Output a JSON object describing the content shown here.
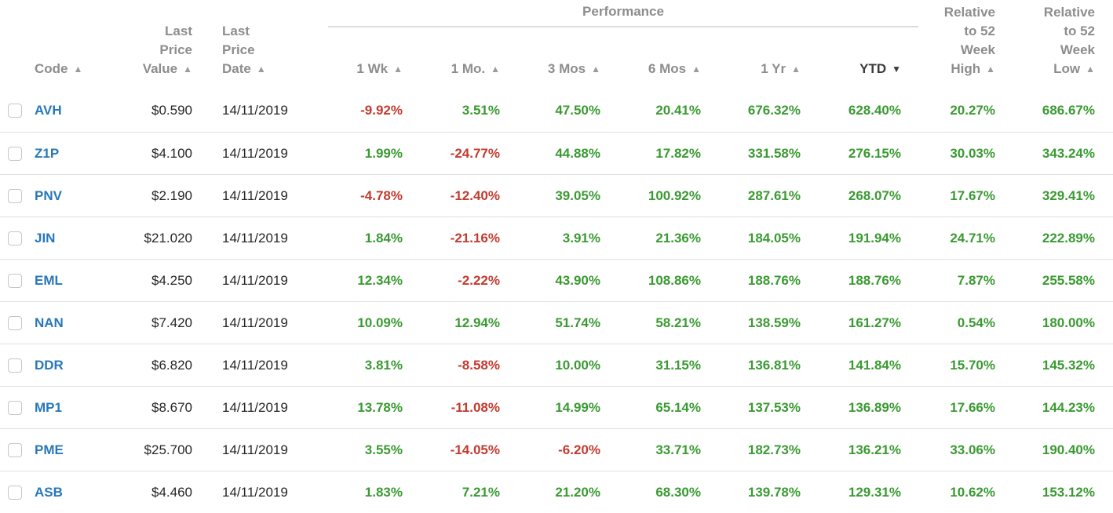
{
  "table": {
    "group_header": {
      "performance": "Performance"
    },
    "columns": {
      "code": "Code",
      "last_price_value": "Last\nPrice\nValue",
      "last_price_date": "Last\nPrice\nDate",
      "wk1": "1 Wk",
      "mo1": "1 Mo.",
      "mos3": "3 Mos",
      "mos6": "6 Mos",
      "yr1": "1 Yr",
      "ytd": "YTD",
      "rel_52wk_high": "Relative\nto 52\nWeek\nHigh",
      "rel_52wk_low": "Relative\nto 52\nWeek\nLow"
    },
    "sort": {
      "active_column": "ytd",
      "direction": "desc"
    },
    "icons": {
      "sort_asc": "▲",
      "sort_desc": "▼"
    },
    "rows": [
      {
        "selected": false,
        "code": "AVH",
        "last_price_value": "$0.590",
        "last_price_date": "14/11/2019",
        "perf": {
          "wk1": "-9.92%",
          "mo1": "3.51%",
          "mos3": "47.50%",
          "mos6": "20.41%",
          "yr1": "676.32%",
          "ytd": "628.40%"
        },
        "rel_52wk_high": "20.27%",
        "rel_52wk_low": "686.67%"
      },
      {
        "selected": false,
        "code": "Z1P",
        "last_price_value": "$4.100",
        "last_price_date": "14/11/2019",
        "perf": {
          "wk1": "1.99%",
          "mo1": "-24.77%",
          "mos3": "44.88%",
          "mos6": "17.82%",
          "yr1": "331.58%",
          "ytd": "276.15%"
        },
        "rel_52wk_high": "30.03%",
        "rel_52wk_low": "343.24%"
      },
      {
        "selected": false,
        "code": "PNV",
        "last_price_value": "$2.190",
        "last_price_date": "14/11/2019",
        "perf": {
          "wk1": "-4.78%",
          "mo1": "-12.40%",
          "mos3": "39.05%",
          "mos6": "100.92%",
          "yr1": "287.61%",
          "ytd": "268.07%"
        },
        "rel_52wk_high": "17.67%",
        "rel_52wk_low": "329.41%"
      },
      {
        "selected": false,
        "code": "JIN",
        "last_price_value": "$21.020",
        "last_price_date": "14/11/2019",
        "perf": {
          "wk1": "1.84%",
          "mo1": "-21.16%",
          "mos3": "3.91%",
          "mos6": "21.36%",
          "yr1": "184.05%",
          "ytd": "191.94%"
        },
        "rel_52wk_high": "24.71%",
        "rel_52wk_low": "222.89%"
      },
      {
        "selected": false,
        "code": "EML",
        "last_price_value": "$4.250",
        "last_price_date": "14/11/2019",
        "perf": {
          "wk1": "12.34%",
          "mo1": "-2.22%",
          "mos3": "43.90%",
          "mos6": "108.86%",
          "yr1": "188.76%",
          "ytd": "188.76%"
        },
        "rel_52wk_high": "7.87%",
        "rel_52wk_low": "255.58%"
      },
      {
        "selected": false,
        "code": "NAN",
        "last_price_value": "$7.420",
        "last_price_date": "14/11/2019",
        "perf": {
          "wk1": "10.09%",
          "mo1": "12.94%",
          "mos3": "51.74%",
          "mos6": "58.21%",
          "yr1": "138.59%",
          "ytd": "161.27%"
        },
        "rel_52wk_high": "0.54%",
        "rel_52wk_low": "180.00%"
      },
      {
        "selected": false,
        "code": "DDR",
        "last_price_value": "$6.820",
        "last_price_date": "14/11/2019",
        "perf": {
          "wk1": "3.81%",
          "mo1": "-8.58%",
          "mos3": "10.00%",
          "mos6": "31.15%",
          "yr1": "136.81%",
          "ytd": "141.84%"
        },
        "rel_52wk_high": "15.70%",
        "rel_52wk_low": "145.32%"
      },
      {
        "selected": false,
        "code": "MP1",
        "last_price_value": "$8.670",
        "last_price_date": "14/11/2019",
        "perf": {
          "wk1": "13.78%",
          "mo1": "-11.08%",
          "mos3": "14.99%",
          "mos6": "65.14%",
          "yr1": "137.53%",
          "ytd": "136.89%"
        },
        "rel_52wk_high": "17.66%",
        "rel_52wk_low": "144.23%"
      },
      {
        "selected": false,
        "code": "PME",
        "last_price_value": "$25.700",
        "last_price_date": "14/11/2019",
        "perf": {
          "wk1": "3.55%",
          "mo1": "-14.05%",
          "mos3": "-6.20%",
          "mos6": "33.71%",
          "yr1": "182.73%",
          "ytd": "136.21%"
        },
        "rel_52wk_high": "33.06%",
        "rel_52wk_low": "190.40%"
      },
      {
        "selected": false,
        "code": "ASB",
        "last_price_value": "$4.460",
        "last_price_date": "14/11/2019",
        "perf": {
          "wk1": "1.83%",
          "mo1": "7.21%",
          "mos3": "21.20%",
          "mos6": "68.30%",
          "yr1": "139.78%",
          "ytd": "129.31%"
        },
        "rel_52wk_high": "10.62%",
        "rel_52wk_low": "153.12%"
      }
    ],
    "colors": {
      "positive": "#3a9a32",
      "negative": "#c23b30",
      "code_link": "#2878ba",
      "header_gray": "#8d8d8d",
      "sorted_header": "#3a3a3a",
      "divider": "#e0e0e0"
    }
  }
}
